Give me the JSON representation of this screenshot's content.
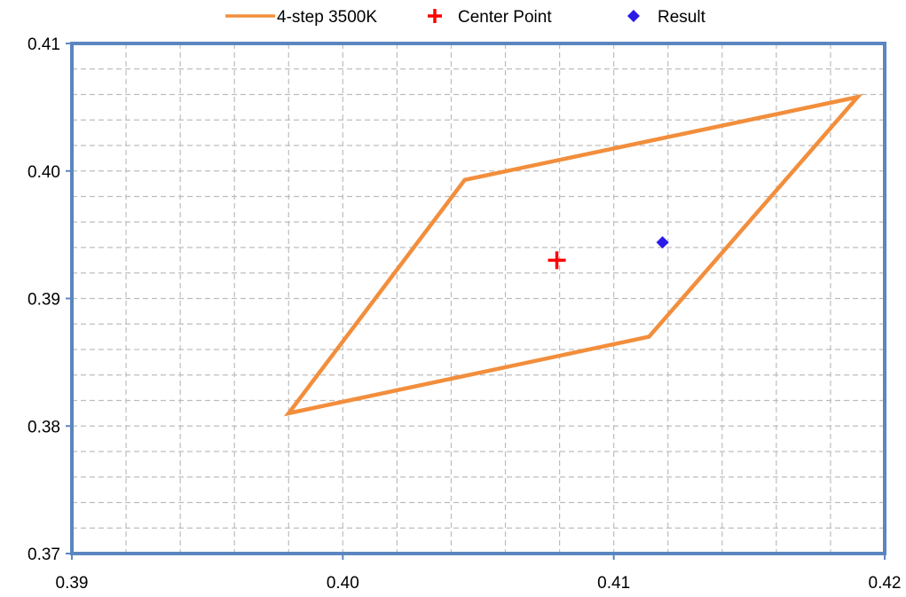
{
  "chart_data": {
    "type": "scatter",
    "title": "",
    "xlabel": "",
    "ylabel": "",
    "xlim": [
      0.39,
      0.42
    ],
    "ylim": [
      0.37,
      0.41
    ],
    "x_ticks": [
      {
        "value": 0.39,
        "label": "0.39"
      },
      {
        "value": 0.4,
        "label": "0.40"
      },
      {
        "value": 0.41,
        "label": "0.41"
      },
      {
        "value": 0.42,
        "label": "0.42"
      }
    ],
    "y_ticks": [
      {
        "value": 0.37,
        "label": "0.37"
      },
      {
        "value": 0.38,
        "label": "0.38"
      },
      {
        "value": 0.39,
        "label": "0.39"
      },
      {
        "value": 0.4,
        "label": "0.40"
      },
      {
        "value": 0.41,
        "label": "0.41"
      }
    ],
    "grid": {
      "visible": true,
      "style": "dashed",
      "x_step": 0.002,
      "y_step": 0.002
    },
    "legend_position": "top",
    "series": [
      {
        "name": "4-step 3500K",
        "type": "line",
        "color": "#F28E3C",
        "closed": true,
        "points": [
          [
            0.398,
            0.381
          ],
          [
            0.4045,
            0.3993
          ],
          [
            0.419,
            0.4058
          ],
          [
            0.4113,
            0.387
          ]
        ]
      },
      {
        "name": "Center Point",
        "type": "scatter",
        "marker": "plus",
        "color": "#FF0000",
        "points": [
          [
            0.4079,
            0.393
          ]
        ]
      },
      {
        "name": "Result",
        "type": "scatter",
        "marker": "diamond",
        "color": "#2A1AE8",
        "points": [
          [
            0.4118,
            0.3944
          ]
        ]
      }
    ],
    "frame_color": "#5B86C0"
  }
}
